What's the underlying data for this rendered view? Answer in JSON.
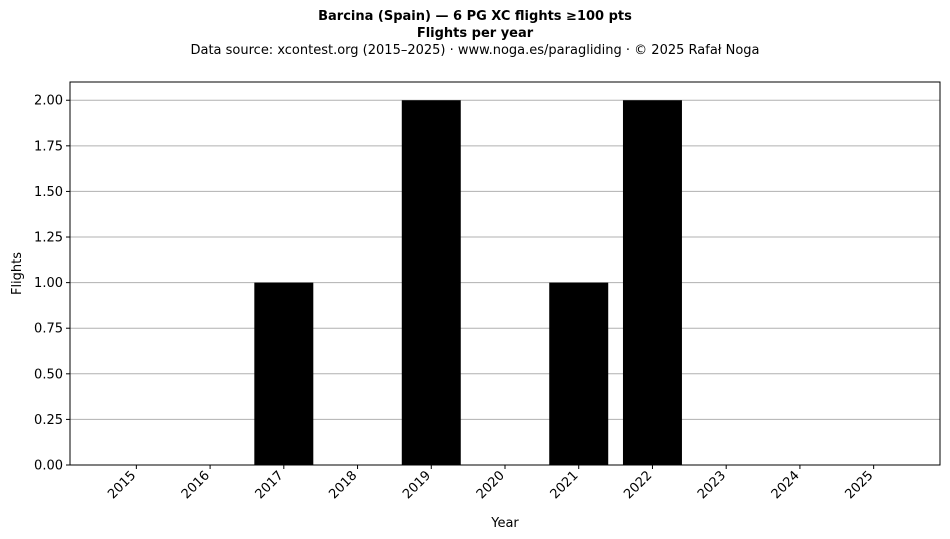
{
  "chart_data": {
    "type": "bar",
    "title": "Barcina (Spain)  —  6 PG XC flights ≥100 pts",
    "subtitle": "Flights per year",
    "source_note": "Data source: xcontest.org (2015–2025)  ·  www.noga.es/paragliding  ·  © 2025 Rafał Noga",
    "xlabel": "Year",
    "ylabel": "Flights",
    "categories": [
      "2015",
      "2016",
      "2017",
      "2018",
      "2019",
      "2020",
      "2021",
      "2022",
      "2023",
      "2024",
      "2025"
    ],
    "values": [
      0,
      0,
      1,
      0,
      2,
      0,
      1,
      2,
      0,
      0,
      0
    ],
    "ylim": [
      0,
      2.1
    ],
    "yticks": [
      0,
      0.25,
      0.5,
      0.75,
      1.0,
      1.25,
      1.5,
      1.75,
      2.0
    ],
    "ytick_labels": [
      "0.00",
      "0.25",
      "0.50",
      "0.75",
      "1.00",
      "1.25",
      "1.50",
      "1.75",
      "2.00"
    ],
    "grid": "y",
    "bar_color": "#000000",
    "grid_color": "#b0b0b0"
  }
}
